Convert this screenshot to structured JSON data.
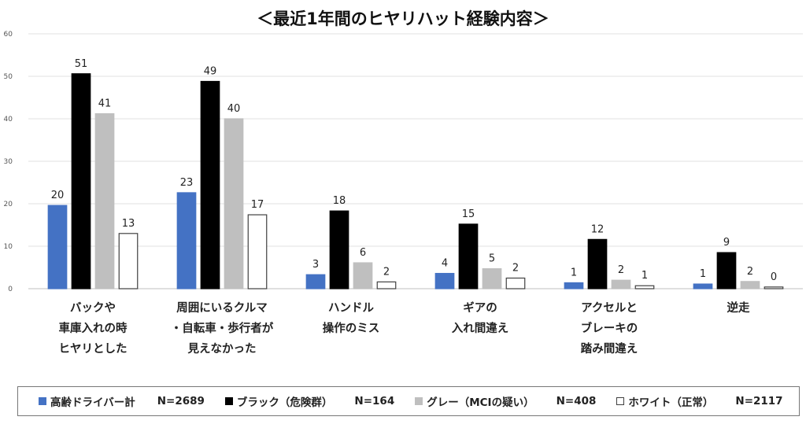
{
  "chart_data": {
    "type": "bar",
    "title": "＜最近1年間のヒヤリハット経験内容＞",
    "categories": [
      [
        "バックや",
        "車庫入れの時",
        "ヒヤリとした"
      ],
      [
        "周囲にいるクルマ",
        "・自転車・歩行者が",
        "見えなかった"
      ],
      [
        "ハンドル",
        "操作のミス"
      ],
      [
        "ギアの",
        "入れ間違え"
      ],
      [
        "アクセルと",
        "ブレーキの",
        "踏み間違え"
      ],
      [
        "逆走"
      ]
    ],
    "series": [
      {
        "name": "高齢ドライバー計",
        "n_label": "N=2689",
        "color": "#4472c4",
        "stroke": "#4472c4",
        "values": [
          19.6,
          22.6,
          3.3,
          3.6,
          1.4,
          1.1
        ],
        "labels": [
          "20",
          "23",
          "3",
          "4",
          "1",
          "1"
        ]
      },
      {
        "name": "ブラック（危険群）",
        "n_label": "N=164",
        "color": "#000000",
        "stroke": "#000000",
        "values": [
          50.6,
          48.8,
          18.3,
          15.2,
          11.6,
          8.5
        ],
        "labels": [
          "51",
          "49",
          "18",
          "15",
          "12",
          "9"
        ]
      },
      {
        "name": "グレー（MCIの疑い）",
        "n_label": "N=408",
        "color": "#bfbfbf",
        "stroke": "#bfbfbf",
        "values": [
          41.2,
          40.0,
          6.1,
          4.7,
          2.0,
          1.7
        ],
        "labels": [
          "41",
          "40",
          "6",
          "5",
          "2",
          "2"
        ]
      },
      {
        "name": "ホワイト（正常）",
        "n_label": "N=2117",
        "color": "#ffffff",
        "stroke": "#404040",
        "values": [
          13.0,
          17.4,
          1.6,
          2.5,
          0.7,
          0.4
        ],
        "labels": [
          "13",
          "17",
          "2",
          "2",
          "1",
          "0"
        ]
      }
    ],
    "yticks": [
      "0",
      "10",
      "20",
      "30",
      "40",
      "50",
      "60"
    ],
    "ylim": [
      0,
      60
    ],
    "grid": true,
    "legend_position": "bottom"
  }
}
